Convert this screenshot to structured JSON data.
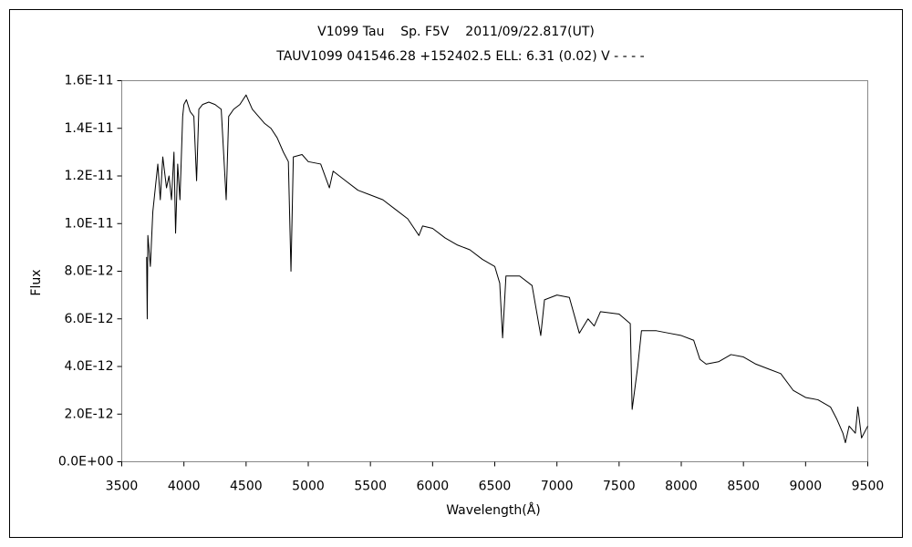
{
  "chart_data": {
    "type": "line",
    "title": "V1099 Tau    Sp. F5V    2011/09/22.817(UT)",
    "subtitle": "TAUV1099 041546.28 +152402.5 ELL: 6.31 (0.02) V - - - -",
    "xlabel": "Wavelength(Å)",
    "ylabel": "Flux",
    "color": "#000000",
    "x": [
      3700,
      3705,
      3710,
      3730,
      3750,
      3770,
      3790,
      3810,
      3830,
      3860,
      3880,
      3900,
      3920,
      3933,
      3950,
      3968,
      3990,
      4000,
      4020,
      4050,
      4080,
      4102,
      4120,
      4150,
      4200,
      4250,
      4300,
      4340,
      4360,
      4400,
      4450,
      4500,
      4550,
      4600,
      4650,
      4700,
      4750,
      4800,
      4840,
      4861,
      4880,
      4950,
      5000,
      5100,
      5170,
      5200,
      5300,
      5400,
      5500,
      5600,
      5700,
      5800,
      5890,
      5920,
      6000,
      6100,
      6200,
      6300,
      6400,
      6500,
      6540,
      6563,
      6590,
      6700,
      6800,
      6870,
      6900,
      7000,
      7100,
      7180,
      7250,
      7300,
      7350,
      7500,
      7590,
      7605,
      7650,
      7680,
      7800,
      7900,
      8000,
      8100,
      8150,
      8200,
      8300,
      8400,
      8500,
      8600,
      8700,
      8800,
      8900,
      9000,
      9100,
      9200,
      9250,
      9300,
      9320,
      9350,
      9400,
      9420,
      9450,
      9500
    ],
    "values": [
      8.6e-12,
      6e-12,
      9.5e-12,
      8.2e-12,
      1.05e-11,
      1.15e-11,
      1.25e-11,
      1.1e-11,
      1.28e-11,
      1.15e-11,
      1.2e-11,
      1.1e-11,
      1.3e-11,
      9.6e-12,
      1.25e-11,
      1.1e-11,
      1.45e-11,
      1.5e-11,
      1.52e-11,
      1.47e-11,
      1.45e-11,
      1.18e-11,
      1.48e-11,
      1.5e-11,
      1.51e-11,
      1.5e-11,
      1.48e-11,
      1.1e-11,
      1.45e-11,
      1.48e-11,
      1.5e-11,
      1.54e-11,
      1.48e-11,
      1.45e-11,
      1.42e-11,
      1.4e-11,
      1.36e-11,
      1.3e-11,
      1.26e-11,
      8e-12,
      1.28e-11,
      1.29e-11,
      1.26e-11,
      1.25e-11,
      1.15e-11,
      1.22e-11,
      1.18e-11,
      1.14e-11,
      1.12e-11,
      1.1e-11,
      1.06e-11,
      1.02e-11,
      9.5e-12,
      9.9e-12,
      9.8e-12,
      9.4e-12,
      9.1e-12,
      8.9e-12,
      8.5e-12,
      8.2e-12,
      7.5e-12,
      5.2e-12,
      7.8e-12,
      7.8e-12,
      7.4e-12,
      5.3e-12,
      6.8e-12,
      7e-12,
      6.9e-12,
      5.4e-12,
      6e-12,
      5.7e-12,
      6.3e-12,
      6.2e-12,
      5.8e-12,
      2.2e-12,
      4e-12,
      5.5e-12,
      5.5e-12,
      5.4e-12,
      5.3e-12,
      5.1e-12,
      4.3e-12,
      4.1e-12,
      4.2e-12,
      4.5e-12,
      4.4e-12,
      4.1e-12,
      3.9e-12,
      3.7e-12,
      3e-12,
      2.7e-12,
      2.6e-12,
      2.3e-12,
      1.8e-12,
      1.2e-12,
      8e-13,
      1.5e-12,
      1.2e-12,
      2.3e-12,
      1e-12,
      1.5e-12
    ],
    "xlim": [
      3500,
      9500
    ],
    "xticks": [
      3500,
      4000,
      4500,
      5000,
      5500,
      6000,
      6500,
      7000,
      7500,
      8000,
      8500,
      9000,
      9500
    ],
    "ylim": [
      0,
      1.6e-11
    ],
    "yticks": [
      {
        "value": 0,
        "label": "0.0E+00"
      },
      {
        "value": 2e-12,
        "label": "2.0E-12"
      },
      {
        "value": 4e-12,
        "label": "4.0E-12"
      },
      {
        "value": 6e-12,
        "label": "6.0E-12"
      },
      {
        "value": 8e-12,
        "label": "8.0E-12"
      },
      {
        "value": 1e-11,
        "label": "1.0E-11"
      },
      {
        "value": 1.2e-11,
        "label": "1.2E-11"
      },
      {
        "value": 1.4e-11,
        "label": "1.4E-11"
      },
      {
        "value": 1.6e-11,
        "label": "1.6E-11"
      }
    ],
    "grid": false
  }
}
